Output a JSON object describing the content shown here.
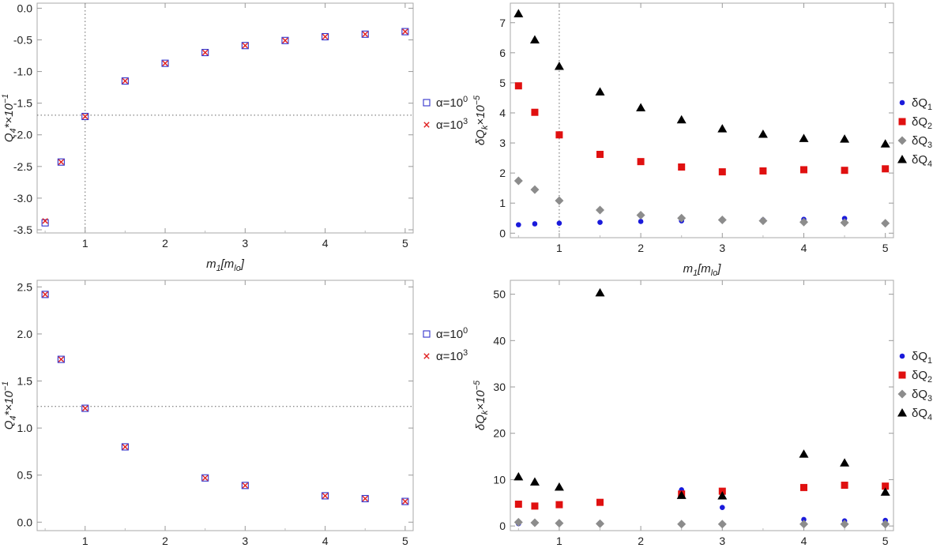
{
  "chart_data": [
    {
      "id": "top-left",
      "type": "scatter",
      "xlabel": "m₁[m_lo]",
      "ylabel": "Q₄*×10⁻¹",
      "xlim": [
        0.4,
        5.1
      ],
      "ylim": [
        -3.55,
        0.08
      ],
      "xticks": [
        1,
        2,
        3,
        4,
        5
      ],
      "yticks": [
        -3.5,
        -3.0,
        -2.5,
        -2.0,
        -1.5,
        -1.0,
        -0.5,
        0.0
      ],
      "ytick_labels": [
        "-3.5",
        "-3.0",
        "-2.5",
        "-2.0",
        "-1.5",
        "-1.0",
        "-0.5",
        "0.0"
      ],
      "ref_lines": {
        "vline": 1,
        "hline": -1.69
      },
      "series": [
        {
          "name": "α=10⁰",
          "marker": "open-square",
          "color": "#3333cc",
          "x": [
            0.5,
            0.7,
            1,
            1.5,
            2,
            2.5,
            3,
            3.5,
            4,
            4.5,
            5
          ],
          "y": [
            -3.39,
            -2.43,
            -1.71,
            -1.15,
            -0.87,
            -0.7,
            -0.59,
            -0.51,
            -0.45,
            -0.41,
            -0.37
          ]
        },
        {
          "name": "α=10³",
          "marker": "cross",
          "color": "#e02020",
          "x": [
            0.5,
            0.7,
            1,
            1.5,
            2,
            2.5,
            3,
            3.5,
            4,
            4.5,
            5
          ],
          "y": [
            -3.36,
            -2.43,
            -1.71,
            -1.15,
            -0.87,
            -0.7,
            -0.59,
            -0.51,
            -0.45,
            -0.41,
            -0.37
          ]
        }
      ]
    },
    {
      "id": "top-right",
      "type": "scatter",
      "xlabel": "m₁[m_lo]",
      "ylabel": "δQ_k×10⁻⁵",
      "xlim": [
        0.4,
        5.1
      ],
      "ylim": [
        -0.15,
        7.65
      ],
      "xticks": [
        1,
        2,
        3,
        4,
        5
      ],
      "yticks": [
        0,
        1,
        2,
        3,
        4,
        5,
        6,
        7
      ],
      "ytick_labels": [
        "0",
        "1",
        "2",
        "3",
        "4",
        "5",
        "6",
        "7"
      ],
      "ref_lines": {
        "vline": 1,
        "hline": null
      },
      "series": [
        {
          "name": "δQ₁",
          "marker": "circle",
          "color": "#1a1adb",
          "x": [
            0.5,
            0.7,
            1,
            1.5,
            2,
            2.5,
            3,
            3.5,
            4,
            4.5,
            5
          ],
          "y": [
            0.28,
            0.31,
            0.33,
            0.36,
            0.39,
            0.41,
            0.43,
            0.44,
            0.46,
            0.49,
            0.33
          ]
        },
        {
          "name": "δQ₂",
          "marker": "square",
          "color": "#e01010",
          "x": [
            0.5,
            0.7,
            1,
            1.5,
            2,
            2.5,
            3,
            3.5,
            4,
            4.5,
            5
          ],
          "y": [
            4.9,
            4.02,
            3.27,
            2.62,
            2.38,
            2.2,
            2.04,
            2.07,
            2.11,
            2.09,
            2.14
          ]
        },
        {
          "name": "δQ₃",
          "marker": "diamond",
          "color": "#8c8c8c",
          "x": [
            0.5,
            0.7,
            1,
            1.5,
            2,
            2.5,
            3,
            3.5,
            4,
            4.5,
            5
          ],
          "y": [
            1.74,
            1.45,
            1.08,
            0.77,
            0.6,
            0.5,
            0.44,
            0.41,
            0.37,
            0.35,
            0.33
          ]
        },
        {
          "name": "δQ₄",
          "marker": "triangle",
          "color": "#000000",
          "x": [
            0.5,
            0.7,
            1,
            1.5,
            2,
            2.5,
            3,
            3.5,
            4,
            4.5,
            5
          ],
          "y": [
            7.3,
            6.43,
            5.55,
            4.7,
            4.17,
            3.77,
            3.47,
            3.29,
            3.15,
            3.13,
            2.97
          ]
        }
      ]
    },
    {
      "id": "bottom-left",
      "type": "scatter",
      "xlabel": "m₁[m_lo]",
      "ylabel": "Q₄*×10⁻¹",
      "xlim": [
        0.4,
        5.1
      ],
      "ylim": [
        -0.09,
        2.57
      ],
      "xticks": [
        1,
        2,
        3,
        4,
        5
      ],
      "yticks": [
        0.0,
        0.5,
        1.0,
        1.5,
        2.0,
        2.5
      ],
      "ytick_labels": [
        "0.0",
        "0.5",
        "1.0",
        "1.5",
        "2.0",
        "2.5"
      ],
      "ref_lines": {
        "vline": null,
        "hline": 1.23
      },
      "series": [
        {
          "name": "α=10⁰",
          "marker": "open-square",
          "color": "#3333cc",
          "x": [
            0.5,
            0.7,
            1,
            1.5,
            2.5,
            3,
            4,
            4.5,
            5
          ],
          "y": [
            2.42,
            1.73,
            1.21,
            0.8,
            0.47,
            0.39,
            0.28,
            0.25,
            0.22
          ]
        },
        {
          "name": "α=10³",
          "marker": "cross",
          "color": "#e02020",
          "x": [
            0.5,
            0.7,
            1,
            1.5,
            2.5,
            3,
            4,
            4.5,
            5
          ],
          "y": [
            2.42,
            1.73,
            1.21,
            0.8,
            0.47,
            0.39,
            0.28,
            0.25,
            0.22
          ]
        }
      ]
    },
    {
      "id": "bottom-right",
      "type": "scatter",
      "xlabel": "m₁[m_lo]",
      "ylabel": "δQ_k×10⁻⁵",
      "xlim": [
        0.4,
        5.1
      ],
      "ylim": [
        -1.0,
        53.0
      ],
      "xticks": [
        1,
        2,
        3,
        4,
        5
      ],
      "yticks": [
        0,
        10,
        20,
        30,
        40,
        50
      ],
      "ytick_labels": [
        "0",
        "10",
        "20",
        "30",
        "40",
        "50"
      ],
      "ref_lines": {
        "vline": null,
        "hline": null
      },
      "series": [
        {
          "name": "δQ₁",
          "marker": "circle",
          "color": "#1a1adb",
          "x": [
            0.5,
            0.7,
            1,
            1.5,
            2.5,
            3,
            4,
            4.5,
            5
          ],
          "y": [
            0.5,
            0.6,
            0.5,
            0.6,
            7.8,
            4.0,
            1.4,
            1.1,
            1.2
          ]
        },
        {
          "name": "δQ₂",
          "marker": "square",
          "color": "#e01010",
          "x": [
            0.5,
            0.7,
            1,
            1.5,
            2.5,
            3,
            4,
            4.5,
            5
          ],
          "y": [
            4.7,
            4.3,
            4.6,
            5.1,
            6.9,
            7.5,
            8.3,
            8.8,
            8.6
          ]
        },
        {
          "name": "δQ₃",
          "marker": "diamond",
          "color": "#8c8c8c",
          "x": [
            0.5,
            0.7,
            1,
            1.5,
            2.5,
            3,
            4,
            4.5,
            5
          ],
          "y": [
            0.8,
            0.7,
            0.6,
            0.5,
            0.4,
            0.4,
            0.4,
            0.4,
            0.4
          ]
        },
        {
          "name": "δQ₄",
          "marker": "triangle",
          "color": "#000000",
          "x": [
            0.5,
            0.7,
            1,
            1.5,
            2.5,
            3,
            4,
            4.5,
            5
          ],
          "y": [
            10.6,
            9.5,
            8.4,
            50.3,
            6.6,
            6.5,
            15.5,
            13.6,
            7.3
          ]
        }
      ]
    }
  ]
}
